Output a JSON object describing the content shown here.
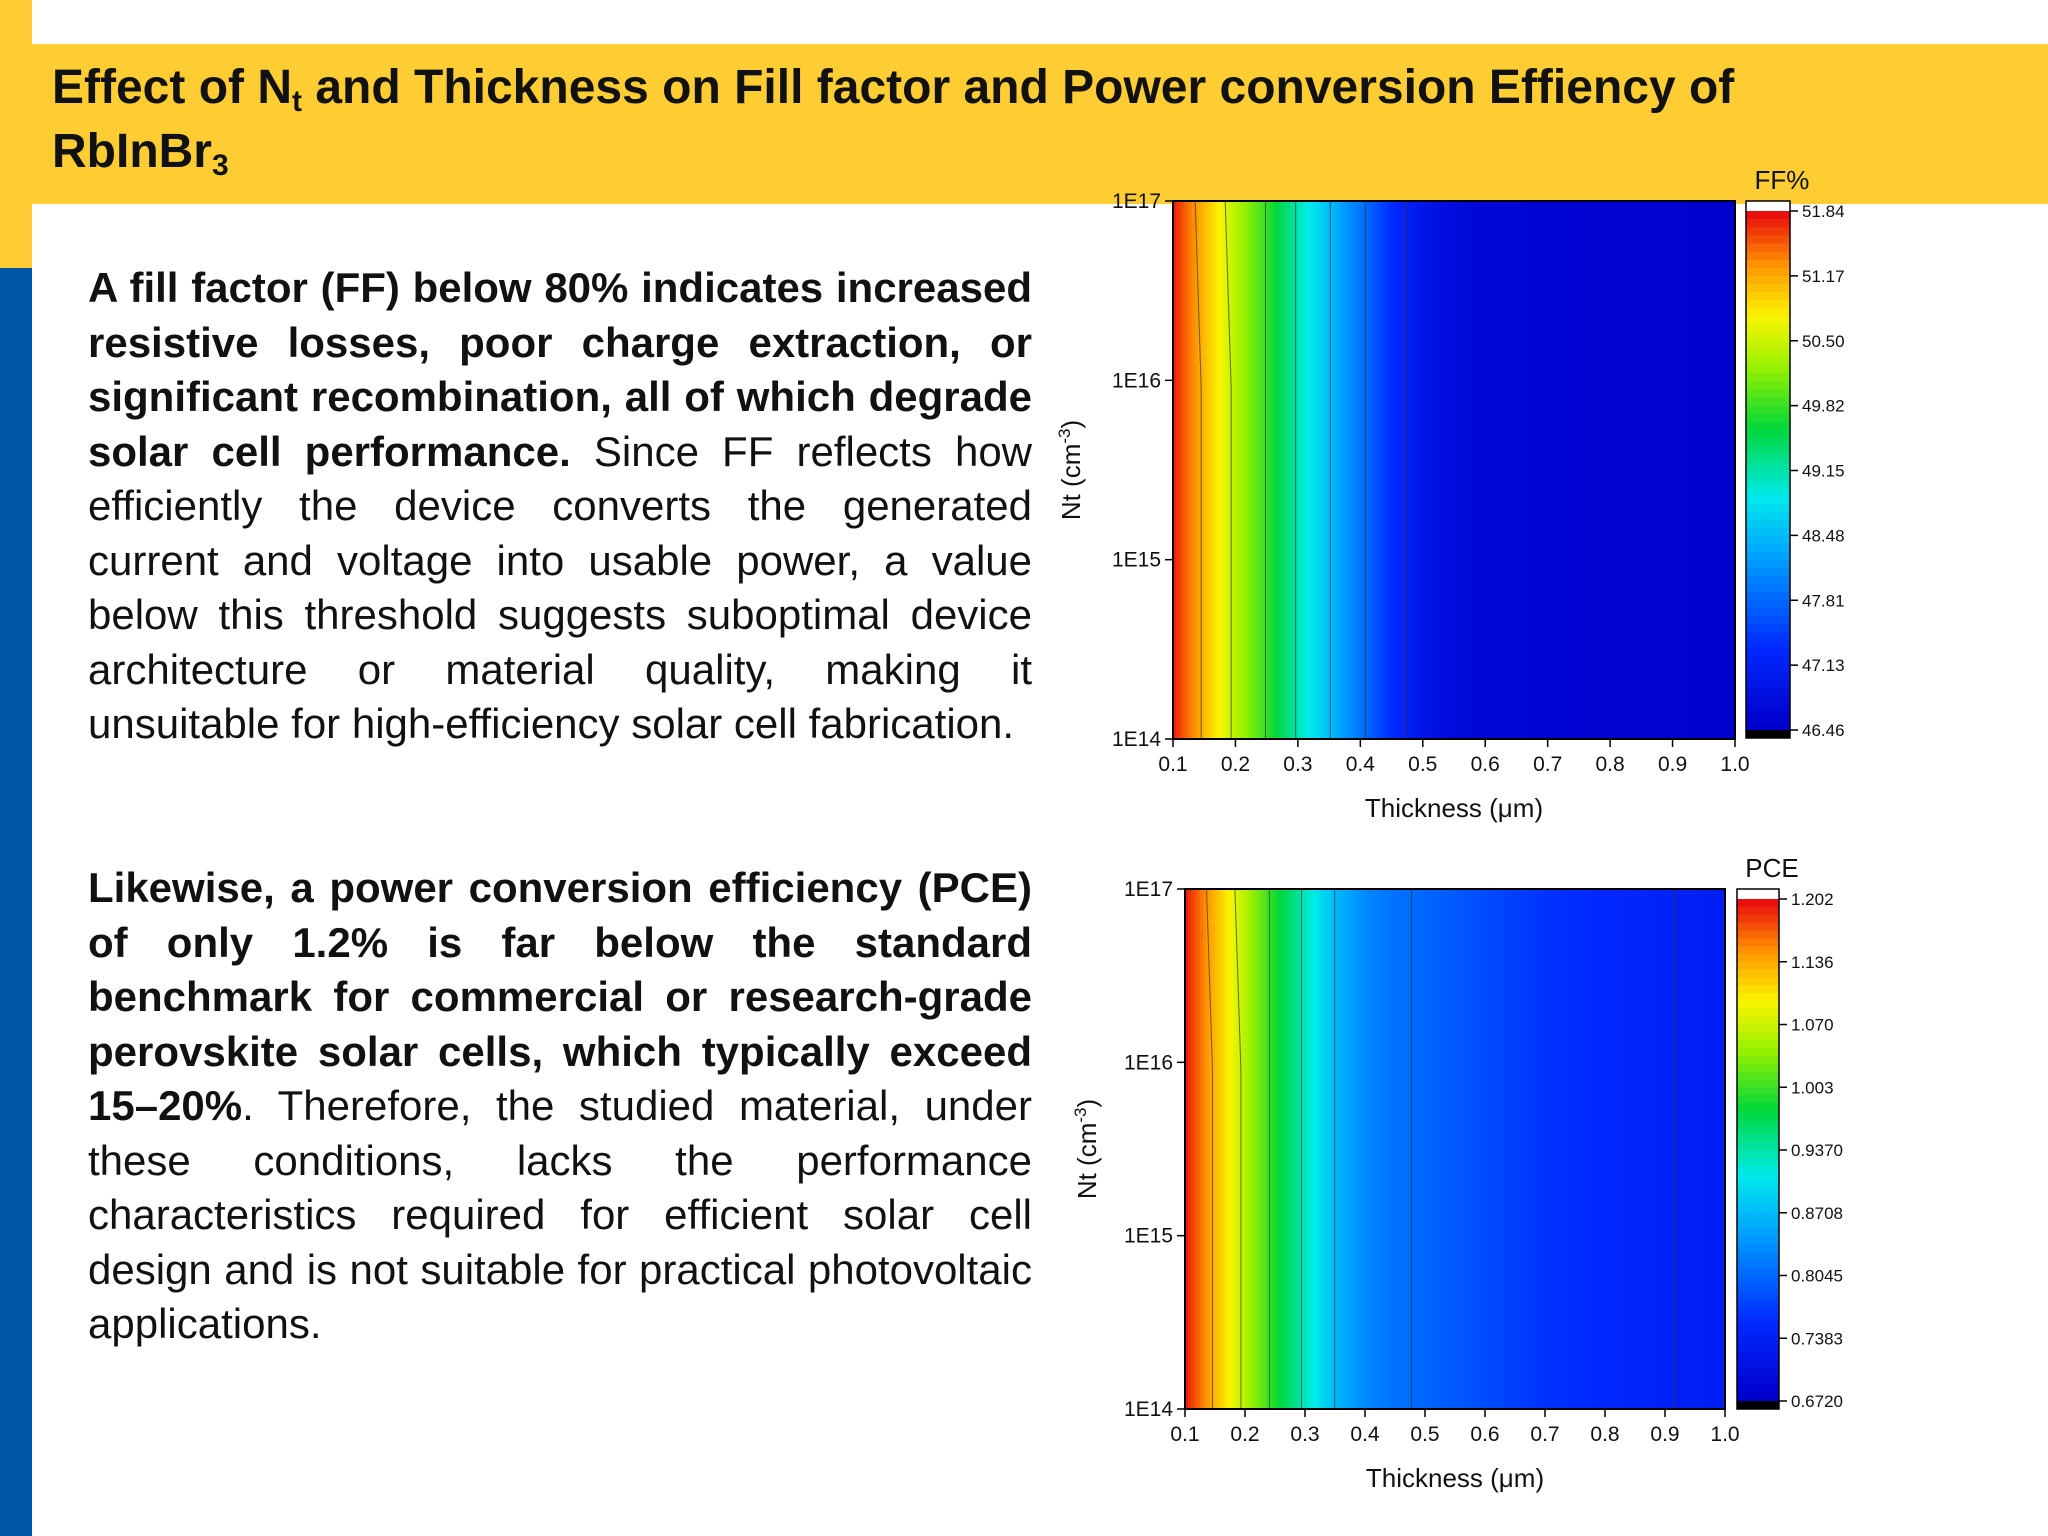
{
  "title": {
    "part1": "Effect of N",
    "part1_sub": "t",
    "part2": " and Thickness on Fill factor and Power conversion Effiency of",
    "part3": "RbInBr",
    "part3_sub": "3"
  },
  "paragraph1": {
    "bold": "A fill factor (FF) below 80% indicates increased resistive losses, poor charge extraction, or significant recombination, all of which degrade solar cell performance.",
    "normal": " Since FF reflects how efficiently the device converts the generated current and voltage into usable power, a value below this threshold suggests suboptimal device architecture or material quality, making it unsuitable for high-efficiency solar cell fabrication."
  },
  "paragraph2": {
    "bold": "Likewise, a power conversion efficiency (PCE) of only 1.2% is far below the standard benchmark for commercial or research-grade perovskite solar cells, which typically exceed 15–20%",
    "normal": ". Therefore, the studied material, under these conditions, lacks the performance characteristics required for efficient solar cell design and is not suitable for practical photovoltaic applications."
  },
  "colors": {
    "accent_yellow": "#FDCD33",
    "accent_blue": "#0056A6",
    "text": "#111111"
  },
  "chart_data": [
    {
      "type": "heatmap",
      "title": "FF%",
      "xlabel": "Thickness (μm)",
      "ylabel": "Nt (cm-3)",
      "x_ticks": [
        "0.1",
        "0.2",
        "0.3",
        "0.4",
        "0.5",
        "0.6",
        "0.7",
        "0.8",
        "0.9",
        "1.0"
      ],
      "y_ticks": [
        "1E14",
        "1E15",
        "1E16",
        "1E17"
      ],
      "xlim": [
        0.1,
        1.0
      ],
      "ylim": [
        100000000000000.0,
        1e+17
      ],
      "y_scale": "log",
      "colorbar_ticks": [
        "51.84",
        "51.17",
        "50.50",
        "49.82",
        "49.15",
        "48.48",
        "47.81",
        "47.13",
        "46.46"
      ],
      "zlim": [
        46.46,
        51.84
      ],
      "x": [
        0.1,
        0.15,
        0.2,
        0.25,
        0.3,
        0.35,
        0.4,
        0.45,
        0.5,
        0.55,
        0.6,
        0.7,
        0.8,
        0.9,
        1.0
      ],
      "values": [
        51.8,
        51.1,
        50.4,
        49.8,
        49.1,
        48.5,
        47.9,
        47.3,
        46.9,
        46.7,
        46.6,
        46.55,
        46.5,
        46.5,
        46.46
      ]
    },
    {
      "type": "heatmap",
      "title": "PCE",
      "xlabel": "Thickness (μm)",
      "ylabel": "Nt (cm-3)",
      "x_ticks": [
        "0.1",
        "0.2",
        "0.3",
        "0.4",
        "0.5",
        "0.6",
        "0.7",
        "0.8",
        "0.9",
        "1.0"
      ],
      "y_ticks": [
        "1E14",
        "1E15",
        "1E16",
        "1E17"
      ],
      "xlim": [
        0.1,
        1.0
      ],
      "ylim": [
        100000000000000.0,
        1e+17
      ],
      "y_scale": "log",
      "colorbar_ticks": [
        "1.202",
        "1.136",
        "1.070",
        "1.003",
        "0.9370",
        "0.8708",
        "0.8045",
        "0.7383",
        "0.6720"
      ],
      "zlim": [
        0.672,
        1.202
      ],
      "x": [
        0.1,
        0.15,
        0.2,
        0.25,
        0.3,
        0.35,
        0.4,
        0.45,
        0.5,
        0.55,
        0.6,
        0.65,
        0.7,
        0.8,
        0.9,
        1.0
      ],
      "values": [
        1.2,
        1.13,
        1.06,
        0.99,
        0.93,
        0.87,
        0.83,
        0.81,
        0.8,
        0.79,
        0.78,
        0.77,
        0.76,
        0.75,
        0.74,
        0.73
      ]
    }
  ]
}
